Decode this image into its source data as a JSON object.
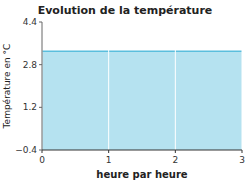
{
  "chart_data": {
    "type": "area",
    "title": "Evolution de la température",
    "x_label": "heure par heure",
    "y_label": "Température en °C",
    "x": [
      0,
      3
    ],
    "values": [
      3.3,
      3.3
    ],
    "color": "#5abedd",
    "xlim": [
      0,
      3
    ],
    "ylim": [
      -0.4,
      4.4
    ],
    "xticks": [
      0,
      1,
      2,
      3
    ],
    "yticks": [
      {
        "value": -0.4,
        "label": "−0.4"
      },
      1.2,
      2.8,
      4.4
    ],
    "grid": "x"
  }
}
